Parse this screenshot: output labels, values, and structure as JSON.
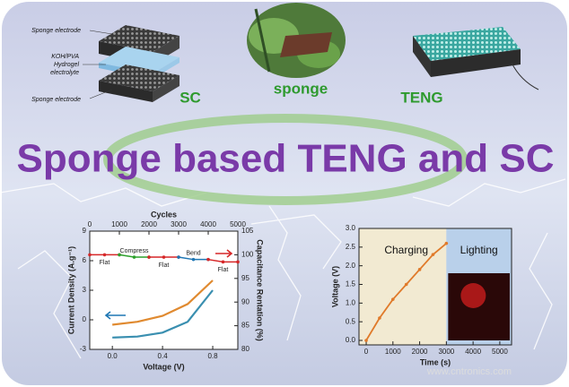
{
  "diagram": {
    "layer_labels": [
      "Sponge electrode",
      "KOH/PVA",
      "Hydrogel",
      "electrolyte",
      "Sponge electrode"
    ],
    "sc": "SC",
    "sponge": "sponge",
    "teng": "TENG"
  },
  "title": "Sponge based TENG and SC",
  "left_plot": {
    "x_label": "Voltage (V)",
    "xlim": [
      -0.18,
      1.0
    ],
    "xticks": [
      {
        "value": 0,
        "label": "0.0"
      },
      {
        "value": 0.4,
        "label": "0.4"
      },
      {
        "value": 0.8,
        "label": "0.8"
      }
    ],
    "y_label": "Current Density (A.g⁻¹)",
    "ylim": [
      -3,
      9
    ],
    "yticks": [
      -3,
      0,
      3,
      6,
      9
    ],
    "top_label": "Cycles",
    "x2lim": [
      0,
      5000
    ],
    "x2ticks": [
      0,
      1000,
      2000,
      3000,
      4000,
      5000
    ],
    "y2_label": "Capacitance Rentation (%)",
    "y2lim": [
      80,
      105
    ],
    "y2ticks": [
      80,
      85,
      90,
      95,
      100,
      105
    ],
    "cv": {
      "voltage": [
        0,
        0.2,
        0.4,
        0.6,
        0.8
      ],
      "charge": [
        -0.5,
        -0.2,
        0.4,
        1.6,
        4
      ],
      "discharge": [
        -1.8,
        -1.7,
        -1.3,
        -0.2,
        3
      ]
    },
    "retention": [
      {
        "label": "Flat",
        "cycles": [
          0,
          500,
          1000
        ],
        "values": [
          100,
          100,
          100
        ],
        "color": "#d62728"
      },
      {
        "label": "Compress",
        "cycles": [
          1000,
          1500,
          2000
        ],
        "values": [
          100,
          99.5,
          99.5
        ],
        "color": "#2ca02c"
      },
      {
        "label": "Flat",
        "cycles": [
          2000,
          2500,
          3000
        ],
        "values": [
          99.5,
          99.5,
          99.5
        ],
        "color": "#d62728"
      },
      {
        "label": "Bend",
        "cycles": [
          3000,
          3500,
          4000
        ],
        "values": [
          99.5,
          99,
          99
        ],
        "color": "#1f77b4"
      },
      {
        "label": "Flat",
        "cycles": [
          4000,
          4500,
          5000
        ],
        "values": [
          99,
          98.5,
          98.5
        ],
        "color": "#d62728"
      }
    ]
  },
  "right_plot": {
    "x_label": "Time (s)",
    "xlim": [
      -270,
      5440
    ],
    "xticks": [
      0,
      1000,
      2000,
      3000,
      4000,
      5000
    ],
    "y_label": "Voltage (V)",
    "ylim": [
      -0.12,
      3.0
    ],
    "yticks": [
      {
        "value": 0,
        "label": "0.0"
      },
      0.5,
      {
        "value": 1,
        "label": "1.0"
      },
      1.5,
      {
        "value": 2,
        "label": "2.0"
      },
      2.5,
      {
        "value": 3,
        "label": "3.0"
      }
    ],
    "charging": "Charging",
    "lighting": "Lighting",
    "switch_time": 3000,
    "time": [
      0,
      500,
      1000,
      1500,
      2000,
      2500,
      3000
    ],
    "voltage": [
      0,
      0.6,
      1.1,
      1.5,
      1.9,
      2.3,
      2.6
    ]
  },
  "watermark": "www.cntronics.com"
}
